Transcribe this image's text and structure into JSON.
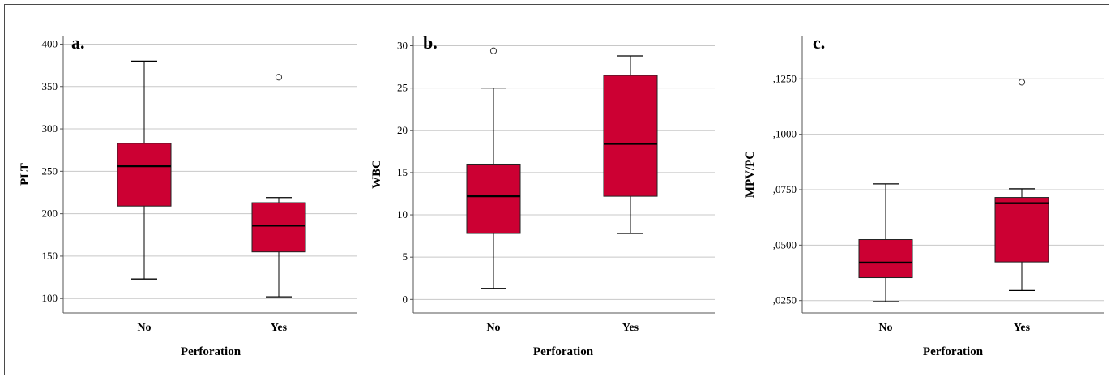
{
  "figure": {
    "panels": [
      {
        "label": "a.",
        "xlabel": "Perforation",
        "ylabel": "PLT"
      },
      {
        "label": "b.",
        "xlabel": "Perforation",
        "ylabel": "WBC"
      },
      {
        "label": "c.",
        "xlabel": "Perforation",
        "ylabel": "MPV/PC"
      }
    ]
  },
  "colors": {
    "box_fill": "#cc0033",
    "grid": "#c8c8c8",
    "axis": "#555555"
  },
  "chart_data": [
    {
      "type": "box",
      "title": "a.",
      "xlabel": "Perforation",
      "ylabel": "PLT",
      "categories": [
        "No",
        "Yes"
      ],
      "ylim": [
        83,
        410
      ],
      "yticks": [
        100,
        150,
        200,
        250,
        300,
        350,
        400
      ],
      "ytick_labels": [
        "100",
        "150",
        "200",
        "250",
        "300",
        "350",
        "400"
      ],
      "grid": true,
      "boxes": [
        {
          "category": "No",
          "whisker_low": 123,
          "q1": 209,
          "median": 256,
          "q3": 283,
          "whisker_high": 380,
          "outliers": []
        },
        {
          "category": "Yes",
          "whisker_low": 102,
          "q1": 155,
          "median": 186,
          "q3": 213,
          "whisker_high": 219,
          "outliers": [
            361
          ]
        }
      ]
    },
    {
      "type": "box",
      "title": "b.",
      "xlabel": "Perforation",
      "ylabel": "WBC",
      "categories": [
        "No",
        "Yes"
      ],
      "ylim": [
        -1.6,
        31.2
      ],
      "yticks": [
        0,
        5,
        10,
        15,
        20,
        25,
        30
      ],
      "ytick_labels": [
        "0",
        "5",
        "10",
        "15",
        "20",
        "25",
        "30"
      ],
      "grid": true,
      "boxes": [
        {
          "category": "No",
          "whisker_low": 1.3,
          "q1": 7.8,
          "median": 12.2,
          "q3": 16.0,
          "whisker_high": 25.0,
          "outliers": [
            29.4
          ]
        },
        {
          "category": "Yes",
          "whisker_low": 7.8,
          "q1": 12.2,
          "median": 18.4,
          "q3": 26.5,
          "whisker_high": 28.8,
          "outliers": []
        }
      ]
    },
    {
      "type": "box",
      "title": "c.",
      "xlabel": "Perforation",
      "ylabel": "MPV/PC",
      "categories": [
        "No",
        "Yes"
      ],
      "ylim": [
        0.0194,
        0.1445
      ],
      "yticks": [
        0.025,
        0.05,
        0.075,
        0.1,
        0.125
      ],
      "ytick_labels": [
        ",0250",
        ",0500",
        ",0750",
        ",1000",
        ",1250"
      ],
      "grid": true,
      "boxes": [
        {
          "category": "No",
          "whisker_low": 0.0245,
          "q1": 0.0353,
          "median": 0.0421,
          "q3": 0.0525,
          "whisker_high": 0.0776,
          "outliers": []
        },
        {
          "category": "Yes",
          "whisker_low": 0.0295,
          "q1": 0.0424,
          "median": 0.0689,
          "q3": 0.0715,
          "whisker_high": 0.0754,
          "outliers": [
            0.1235
          ]
        }
      ]
    }
  ]
}
